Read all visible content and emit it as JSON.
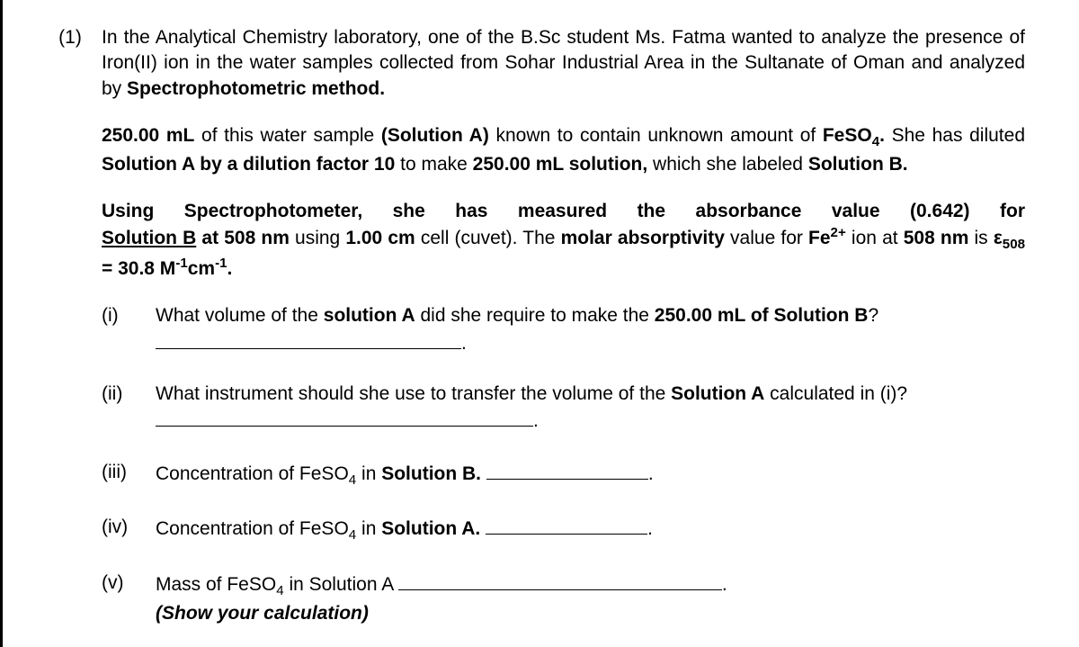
{
  "question_number": "(1)",
  "para1_a": "In the Analytical Chemistry laboratory, one of the B.Sc student Ms. Fatma wanted to analyze the presence of Iron(II) ion in the water samples collected from Sohar Industrial Area in the Sultanate of Oman and analyzed by ",
  "para1_b": "Spectrophotometric method.",
  "para2_a": "250.00 mL",
  "para2_b": " of this water sample ",
  "para2_c": "(Solution A)",
  "para2_d": " known to contain unknown amount of ",
  "para2_e": "FeSO",
  "para2_e_sub": "4",
  "para2_e_dot": ".",
  "para2_f": " She has diluted ",
  "para2_g": "Solution A by a dilution factor 10",
  "para2_h": " to make ",
  "para2_i": "250.00 mL solution,",
  "para2_j": " which she labeled ",
  "para2_k": "Solution B.",
  "para3_a": "Using Spectrophotometer, she has measured the absorbance value (0.642) for ",
  "para3_b": "Solution B",
  "para3_c": " at ",
  "para3_d": "508 nm",
  "para3_e": " using ",
  "para3_f": "1.00 cm",
  "para3_g": " cell (cuvet). The ",
  "para3_h": "molar absorptivity",
  "para3_i": " value for ",
  "para3_j": "Fe",
  "para3_j_sup": "2+",
  "para3_k": " ion at ",
  "para3_l": "508 nm",
  "para3_m": " is ",
  "para3_n": "ε",
  "para3_n_sub": "508",
  "para3_o": " = 30.8 M",
  "para3_o_sup1": "-1",
  "para3_p": "cm",
  "para3_p_sup": "-1",
  "para3_q": ".",
  "sub_i_num": "(i)",
  "sub_i_a": "What volume of the ",
  "sub_i_b": "solution A",
  "sub_i_c": " did she require to make the ",
  "sub_i_d": "250.00 mL of Solution B",
  "sub_i_e": "?",
  "sub_i_dot": ".",
  "sub_ii_num": "(ii)",
  "sub_ii_a": "What instrument should she use to transfer the volume of the ",
  "sub_ii_b": "Solution A",
  "sub_ii_c": " calculated in (i)? ",
  "sub_ii_dot": ".",
  "sub_iii_num": "(iii)",
  "sub_iii_a": "Concentration of FeSO",
  "sub_iii_sub": "4",
  "sub_iii_b": " in ",
  "sub_iii_c": "Solution B.",
  "sub_iii_dot": ".",
  "sub_iv_num": "(iv)",
  "sub_iv_a": "Concentration of FeSO",
  "sub_iv_sub": "4",
  "sub_iv_b": " in ",
  "sub_iv_c": "Solution A.",
  "sub_iv_dot": ".",
  "sub_v_num": "(v)",
  "sub_v_a": "Mass of FeSO",
  "sub_v_sub": "4",
  "sub_v_b": " in Solution A ",
  "sub_v_dot": ".",
  "sub_v_c": "(Show your calculation)",
  "blanks": {
    "i": "340px",
    "ii": "420px",
    "iii": "180px",
    "iv": "180px",
    "v": "360px"
  }
}
